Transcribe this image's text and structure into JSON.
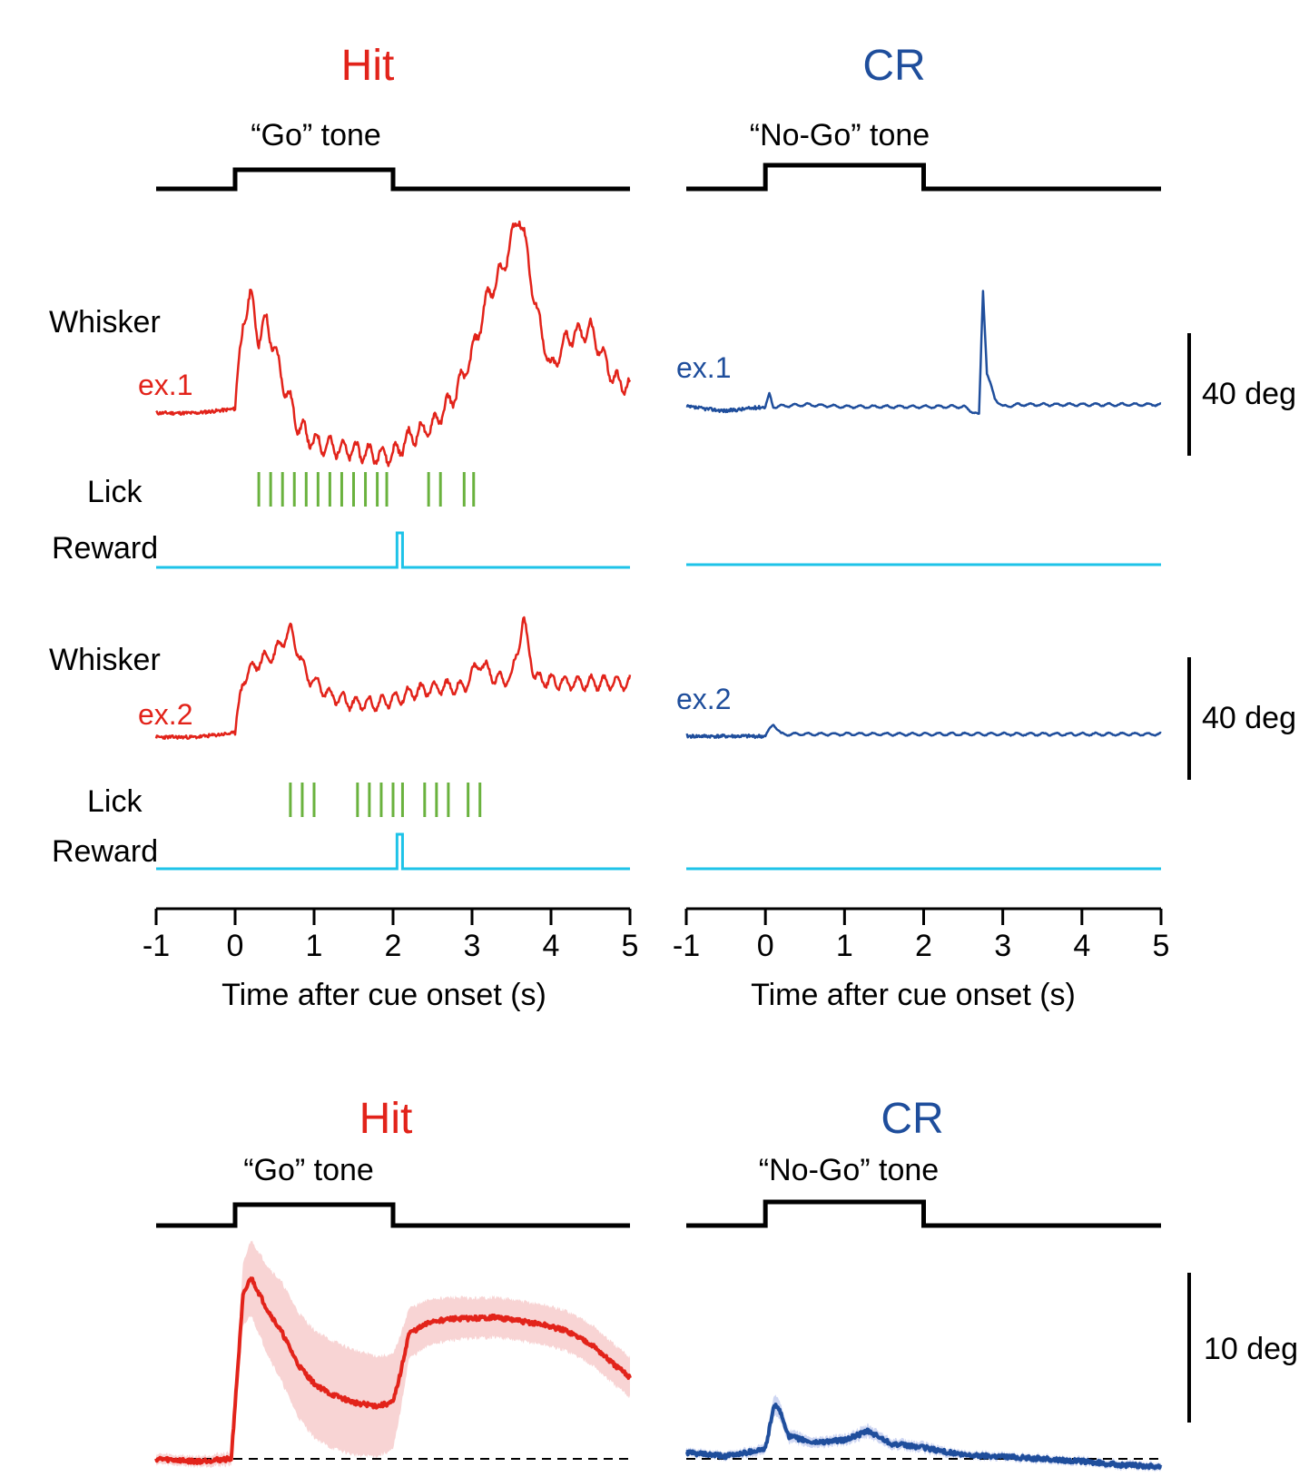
{
  "colors": {
    "hit": "#e2231a",
    "cr": "#1f4e9c",
    "lick": "#6ab23e",
    "reward": "#1ec3e8",
    "cue": "#000000",
    "shade_hit": "#f7cccc",
    "shade_cr": "#c5cff0"
  },
  "panels": {
    "top_left": {
      "title": "Hit",
      "cue_label": "“Go”  tone"
    },
    "top_right": {
      "title": "CR",
      "cue_label": "“No-Go”  tone"
    },
    "bottom_left": {
      "title": "Hit",
      "cue_label": "“Go”  tone"
    },
    "bottom_right": {
      "title": "CR",
      "cue_label": "“No-Go”  tone"
    }
  },
  "row_labels": {
    "whisker1": "Whisker",
    "ex1_left": "ex.1",
    "ex1_right": "ex.1",
    "lick1": "Lick",
    "reward1": "Reward",
    "whisker2": "Whisker",
    "ex2_left": "ex.2",
    "ex2_right": "ex.2",
    "lick2": "Lick",
    "reward2": "Reward"
  },
  "scale_bars": {
    "ex1": "40 deg",
    "ex2": "40 deg",
    "avg": "10 deg"
  },
  "axis": {
    "xlabel": "Time after cue onset (s)",
    "ticks": [
      "-1",
      "0",
      "1",
      "2",
      "3",
      "4",
      "5"
    ]
  },
  "chart_data": [
    {
      "type": "line",
      "title": "Hit",
      "subtitle": "“Go”  tone",
      "xlabel": "Time after cue onset (s)",
      "ylabel": "",
      "xlim": [
        -1,
        5
      ],
      "cue_interval": [
        0,
        2
      ],
      "series": [
        {
          "name": "Whisker ex.1",
          "unit": "deg",
          "x": [
            -1,
            -0.5,
            0,
            0.1,
            0.2,
            0.3,
            0.4,
            0.5,
            0.6,
            0.8,
            1.0,
            1.2,
            1.5,
            1.8,
            2.0,
            2.2,
            2.5,
            2.8,
            3.0,
            3.2,
            3.4,
            3.6,
            3.7,
            3.8,
            4.0,
            4.2,
            4.5,
            4.8,
            5.0
          ],
          "y": [
            0,
            0,
            1,
            22,
            28,
            18,
            22,
            15,
            8,
            -3,
            -7,
            -8,
            -9,
            -10,
            -10,
            -6,
            -3,
            5,
            14,
            28,
            35,
            48,
            38,
            26,
            10,
            18,
            20,
            8,
            6
          ]
        },
        {
          "name": "Whisker ex.2",
          "unit": "deg",
          "x": [
            -1,
            -0.5,
            0,
            0.1,
            0.3,
            0.5,
            0.7,
            0.9,
            1.2,
            1.5,
            1.8,
            2.0,
            2.3,
            2.6,
            2.9,
            3.1,
            3.3,
            3.5,
            3.65,
            3.8,
            4.2,
            4.6,
            5.0
          ],
          "y": [
            0,
            0,
            1,
            14,
            18,
            20,
            26,
            15,
            10,
            8,
            8,
            9,
            11,
            12,
            12,
            18,
            14,
            14,
            28,
            14,
            13,
            13,
            13
          ]
        },
        {
          "name": "Lick ex.1",
          "x": [
            0.3,
            0.45,
            0.6,
            0.75,
            0.9,
            1.05,
            1.2,
            1.35,
            1.5,
            1.65,
            1.8,
            1.92,
            2.45,
            2.6,
            2.9,
            3.02
          ]
        },
        {
          "name": "Lick ex.2",
          "x": [
            0.7,
            0.85,
            1.0,
            1.55,
            1.7,
            1.85,
            2.0,
            2.12,
            2.4,
            2.55,
            2.7,
            2.95,
            3.1
          ]
        },
        {
          "name": "Reward ex.1",
          "x": [
            2.05,
            2.12
          ]
        },
        {
          "name": "Reward ex.2",
          "x": [
            2.05,
            2.12
          ]
        }
      ]
    },
    {
      "type": "line",
      "title": "CR",
      "subtitle": "“No-Go”  tone",
      "xlabel": "Time after cue onset (s)",
      "ylabel": "",
      "xlim": [
        -1,
        5
      ],
      "cue_interval": [
        0,
        2
      ],
      "series": [
        {
          "name": "Whisker ex.1",
          "unit": "deg",
          "x": [
            -1,
            -0.5,
            0,
            0.05,
            0.1,
            0.5,
            1.0,
            1.5,
            2.0,
            2.5,
            2.7,
            2.75,
            2.8,
            2.9,
            3.0,
            3.2,
            3.5,
            4.0,
            5.0
          ],
          "y": [
            0,
            -1,
            0,
            3,
            0,
            0.5,
            0,
            0,
            0,
            0,
            -2,
            28,
            8,
            2,
            0,
            0.5,
            0.5,
            0.5,
            0.5
          ]
        },
        {
          "name": "Whisker ex.2",
          "unit": "deg",
          "x": [
            -1,
            0,
            0.1,
            0.2,
            0.5,
            1.0,
            2.0,
            3.0,
            4.0,
            5.0
          ],
          "y": [
            0,
            0,
            3,
            0.5,
            0.5,
            0.5,
            0.5,
            0.5,
            0.5,
            0.5
          ]
        },
        {
          "name": "Reward ex.1",
          "x": []
        },
        {
          "name": "Reward ex.2",
          "x": []
        }
      ]
    },
    {
      "type": "area",
      "title": "Hit",
      "subtitle": "“Go”  tone",
      "xlim": [
        -1,
        5
      ],
      "cue_interval": [
        0,
        2
      ],
      "series": [
        {
          "name": "Mean whisker angle",
          "unit": "deg",
          "x": [
            -1,
            -0.5,
            -0.05,
            0.1,
            0.2,
            0.4,
            0.6,
            0.8,
            1.0,
            1.2,
            1.5,
            1.8,
            2.0,
            2.1,
            2.2,
            2.5,
            2.8,
            3.0,
            3.3,
            3.6,
            3.9,
            4.2,
            4.5,
            4.8,
            5.0
          ],
          "y": [
            0,
            -0.2,
            0,
            13,
            14.5,
            12,
            10,
            7.5,
            6,
            5.2,
            4.5,
            4.2,
            4.5,
            7,
            10,
            11,
            11.2,
            11.2,
            11.3,
            11.0,
            10.7,
            10.2,
            9.2,
            7.5,
            6.5
          ],
          "err": [
            0.4,
            0.4,
            0.5,
            2.5,
            3,
            3.5,
            4,
            4.2,
            4.3,
            4.3,
            4.2,
            4.0,
            3.8,
            3,
            2,
            1.8,
            1.7,
            1.6,
            1.6,
            1.6,
            1.6,
            1.6,
            1.6,
            1.6,
            1.6
          ]
        },
        {
          "name": "Baseline",
          "x": [
            -1,
            5
          ],
          "y": [
            0,
            0
          ]
        }
      ],
      "ylim": [
        -0.5,
        16
      ]
    },
    {
      "type": "area",
      "title": "CR",
      "subtitle": "“No-Go”  tone",
      "xlim": [
        -1,
        5
      ],
      "cue_interval": [
        0,
        2
      ],
      "series": [
        {
          "name": "Mean whisker angle",
          "unit": "deg",
          "x": [
            -1,
            -0.5,
            0,
            0.1,
            0.15,
            0.3,
            0.6,
            1.0,
            1.3,
            1.6,
            2.0,
            2.5,
            3.0,
            3.5,
            4.0,
            4.5,
            5.0
          ],
          "y": [
            0.5,
            0.2,
            0.8,
            4.0,
            4.3,
            1.8,
            1.3,
            1.5,
            2.2,
            1.2,
            0.9,
            0.3,
            0.2,
            0,
            -0.2,
            -0.5,
            -0.6
          ],
          "err": [
            0.3,
            0.3,
            0.4,
            0.8,
            0.8,
            0.5,
            0.4,
            0.4,
            0.5,
            0.4,
            0.4,
            0.3,
            0.3,
            0.3,
            0.3,
            0.3,
            0.3
          ]
        },
        {
          "name": "Baseline",
          "x": [
            -1,
            5
          ],
          "y": [
            0,
            0
          ]
        }
      ],
      "ylim": [
        -0.8,
        16
      ]
    }
  ]
}
